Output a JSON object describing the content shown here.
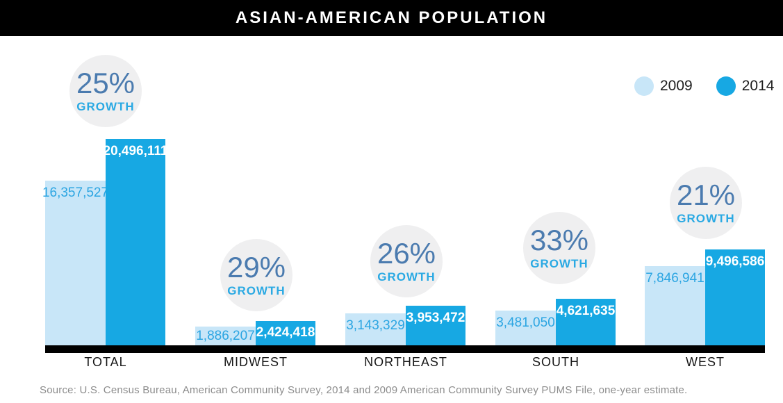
{
  "header": {
    "title": "ASIAN-AMERICAN POPULATION"
  },
  "legend": {
    "items": [
      {
        "label": "2009",
        "color": "#c8e6f8"
      },
      {
        "label": "2014",
        "color": "#17a8e3"
      }
    ],
    "position": "top-right"
  },
  "growth_word": "GROWTH",
  "groups": [
    {
      "category": "TOTAL",
      "growth": "25%",
      "v2009": "16,357,527",
      "v2014": "20,496,111"
    },
    {
      "category": "MIDWEST",
      "growth": "29%",
      "v2009": "1,886,207",
      "v2014": "2,424,418"
    },
    {
      "category": "NORTHEAST",
      "growth": "26%",
      "v2009": "3,143,329",
      "v2014": "3,953,472"
    },
    {
      "category": "SOUTH",
      "growth": "33%",
      "v2009": "3,481,050",
      "v2014": "4,621,635"
    },
    {
      "category": "WEST",
      "growth": "21%",
      "v2009": "7,846,941",
      "v2014": "9,496,586"
    }
  ],
  "chart_data": {
    "type": "bar",
    "title": "ASIAN-AMERICAN POPULATION",
    "categories": [
      "TOTAL",
      "MIDWEST",
      "NORTHEAST",
      "SOUTH",
      "WEST"
    ],
    "series": [
      {
        "name": "2009",
        "color": "#c8e6f8",
        "values": [
          16357527,
          1886207,
          3143329,
          3481050,
          7846941
        ]
      },
      {
        "name": "2014",
        "color": "#17a8e3",
        "values": [
          20496111,
          2424418,
          3953472,
          4621635,
          9496586
        ]
      }
    ],
    "growth_percent": [
      25,
      29,
      26,
      33,
      21
    ],
    "ylim": [
      0,
      20496111
    ],
    "grid": false,
    "legend_position": "top-right",
    "value_labels": "inside-top"
  },
  "colors": {
    "header_bg": "#000000",
    "bar_2009": "#c8e6f8",
    "bar_2014": "#17a8e3",
    "value_text_2009": "#2ba5e2",
    "value_text_2014": "#ffffff",
    "growth_pct_text": "#4b7baf",
    "growth_word_text": "#2aa9e3",
    "circle_bg": "#efeff0",
    "axis": "#000000",
    "source_text": "#8c8c8c"
  },
  "source": {
    "text": "Source: U.S. Census Bureau, American Community Survey, 2014 and 2009 American Community Survey PUMS File, one-year estimate."
  }
}
